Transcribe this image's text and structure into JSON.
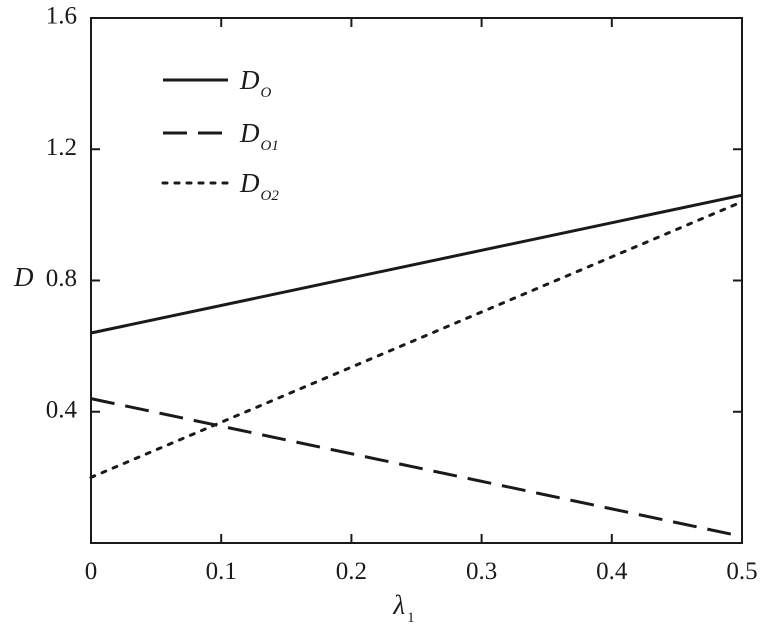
{
  "chart_data": {
    "type": "line",
    "xlabel": "λ",
    "xlabel_sub": "1",
    "ylabel": "D",
    "xlim": [
      0,
      0.5
    ],
    "ylim": [
      0,
      1.6
    ],
    "x_ticks": [
      {
        "value": 0,
        "label": "0"
      },
      {
        "value": 0.1,
        "label": "0.1"
      },
      {
        "value": 0.2,
        "label": "0.2"
      },
      {
        "value": 0.3,
        "label": "0.3"
      },
      {
        "value": 0.4,
        "label": "0.4"
      },
      {
        "value": 0.5,
        "label": "0.5"
      }
    ],
    "y_ticks": [
      {
        "value": 0.4,
        "label": "0.4"
      },
      {
        "value": 0.8,
        "label": "0.8"
      },
      {
        "value": 1.2,
        "label": "1.2"
      },
      {
        "value": 1.6,
        "label": "1.6"
      }
    ],
    "grid": false,
    "legend_position": "top-left",
    "series": [
      {
        "name": "D",
        "name_sub": "O",
        "style": "solid",
        "color": "#1a1a1a",
        "x": [
          0,
          0.5
        ],
        "y": [
          0.64,
          1.06
        ]
      },
      {
        "name": "D",
        "name_sub": "O1",
        "style": "dashed",
        "color": "#1a1a1a",
        "x": [
          0,
          0.5
        ],
        "y": [
          0.44,
          0.02
        ]
      },
      {
        "name": "D",
        "name_sub": "O2",
        "style": "dotted",
        "color": "#1a1a1a",
        "x": [
          0,
          0.5
        ],
        "y": [
          0.2,
          1.04
        ]
      }
    ]
  }
}
